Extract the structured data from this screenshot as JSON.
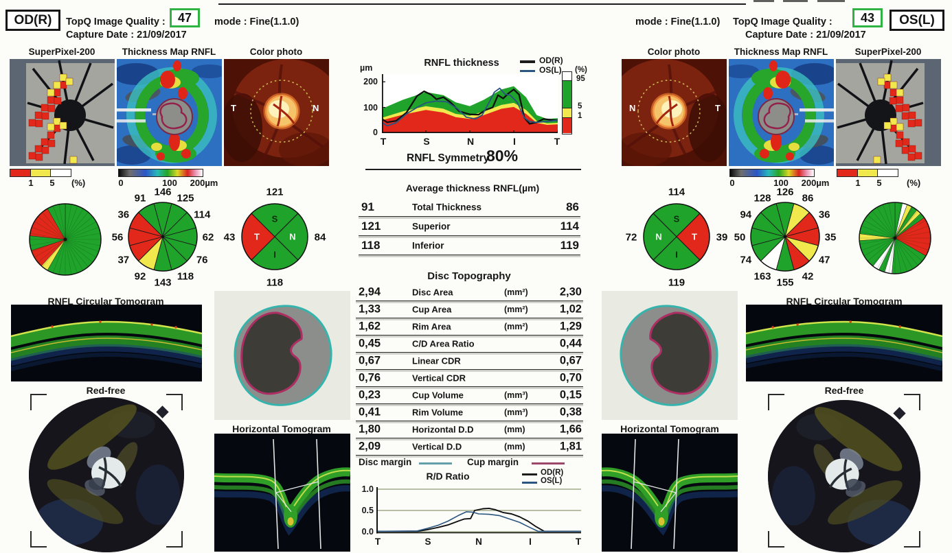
{
  "header": {
    "od": {
      "eye": "OD(R)",
      "quality_label": "TopQ Image Quality :",
      "quality_value": "47",
      "mode": "mode : Fine(1.1.0)",
      "capture_date": "Capture Date : 21/09/2017"
    },
    "os": {
      "eye": "OS(L)",
      "quality_label": "TopQ Image Quality :",
      "quality_value": "43",
      "mode": "mode : Fine(1.1.0)",
      "capture_date": "Capture Date : 21/09/2017"
    },
    "quality_box_color": "#2fb343"
  },
  "row1": {
    "od": {
      "superpixel": "SuperPixel-200",
      "thickness": "Thickness Map RNFL",
      "photo": "Color photo",
      "photo_left": "T",
      "photo_right": "N"
    },
    "os": {
      "photo": "Color photo",
      "thickness": "Thickness Map RNFL",
      "superpixel": "SuperPixel-200",
      "photo_left": "N",
      "photo_right": "T"
    }
  },
  "scales": {
    "percent": {
      "t1": "1",
      "t2": "5",
      "unit": "(%)"
    },
    "micron": {
      "t0": "0",
      "t100": "100",
      "t200": "200µm"
    }
  },
  "rnfl": {
    "title": "RNFL thickness",
    "legend_od": "OD(R)",
    "legend_os": "OS(L)",
    "unit": "µm",
    "yticks": [
      "200",
      "100",
      "0"
    ],
    "xticks": [
      "T",
      "S",
      "N",
      "I",
      "T"
    ],
    "colorbar": {
      "unit": "(%)",
      "t95": "95",
      "t5": "5",
      "t1": "1"
    },
    "symmetry_label": "RNFL Symmetry",
    "symmetry_value": "80%"
  },
  "avg_table": {
    "title": "Average thickness RNFL(µm)",
    "rows": [
      {
        "od": "91",
        "label": "Total Thickness",
        "os": "86"
      },
      {
        "od": "121",
        "label": "Superior",
        "os": "114"
      },
      {
        "od": "118",
        "label": "Inferior",
        "os": "119"
      }
    ]
  },
  "disc_table": {
    "title": "Disc Topography",
    "rows": [
      {
        "od": "2,94",
        "label": "Disc Area",
        "unit": "(mm²)",
        "os": "2,30"
      },
      {
        "od": "1,33",
        "label": "Cup Area",
        "unit": "(mm²)",
        "os": "1,02"
      },
      {
        "od": "1,62",
        "label": "Rim Area",
        "unit": "(mm²)",
        "os": "1,29"
      },
      {
        "od": "0,45",
        "label": "C/D Area Ratio",
        "unit": "",
        "os": "0,44"
      },
      {
        "od": "0,67",
        "label": "Linear CDR",
        "unit": "",
        "os": "0,67"
      },
      {
        "od": "0,76",
        "label": "Vertical CDR",
        "unit": "",
        "os": "0,70"
      },
      {
        "od": "0,23",
        "label": "Cup Volume",
        "unit": "(mm³)",
        "os": "0,15"
      },
      {
        "od": "0,41",
        "label": "Rim Volume",
        "unit": "(mm³)",
        "os": "0,38"
      },
      {
        "od": "1,80",
        "label": "Horizontal D.D",
        "unit": "(mm)",
        "os": "1,66"
      },
      {
        "od": "2,09",
        "label": "Vertical D.D",
        "unit": "(mm)",
        "os": "1,81"
      }
    ]
  },
  "margins": {
    "disc_label": "Disc margin",
    "cup_label": "Cup margin",
    "disc_color": "#639fa8",
    "cup_color": "#9c4668"
  },
  "rd": {
    "title": "R/D Ratio",
    "legend_od": "OD(R)",
    "legend_os": "OS(L)",
    "yticks": [
      "1.0",
      "0.5",
      "0.0"
    ],
    "xticks": [
      "T",
      "S",
      "N",
      "I",
      "T"
    ]
  },
  "sections": {
    "circular_tomogram": "RNFL Circular Tomogram",
    "red_free": "Red-free",
    "horizontal_tomogram": "Horizontal Tomogram"
  },
  "status_colors": {
    "G": "#1fa32b",
    "R": "#e1281a",
    "Y": "#f1e84e",
    "W": "#ffffff"
  },
  "series_colors": {
    "od": "#101010",
    "os": "#2a5580"
  },
  "pies": {
    "od_superpixel": {
      "sectors": [
        [
          0,
          210,
          "G"
        ],
        [
          210,
          222,
          "Y"
        ],
        [
          222,
          252,
          "R"
        ],
        [
          252,
          276,
          "G"
        ],
        [
          276,
          330,
          "R"
        ],
        [
          330,
          360,
          "G"
        ]
      ]
    },
    "os_superpixel": {
      "sectors": [
        [
          0,
          12,
          "G"
        ],
        [
          12,
          20,
          "W"
        ],
        [
          20,
          28,
          "Y"
        ],
        [
          28,
          38,
          "G"
        ],
        [
          38,
          46,
          "Y"
        ],
        [
          46,
          55,
          "G"
        ],
        [
          55,
          120,
          "R"
        ],
        [
          120,
          185,
          "G"
        ],
        [
          185,
          197,
          "W"
        ],
        [
          197,
          207,
          "G"
        ],
        [
          207,
          218,
          "W"
        ],
        [
          218,
          266,
          "G"
        ],
        [
          266,
          277,
          "Y"
        ],
        [
          277,
          360,
          "G"
        ]
      ]
    }
  },
  "chart_data": [
    {
      "type": "area",
      "id": "rnfl_thickness_profile",
      "title": "RNFL thickness",
      "ylabel": "µm",
      "ylim": [
        0,
        230
      ],
      "yticks": [
        0,
        100,
        200
      ],
      "xticks": [
        "T",
        "S",
        "N",
        "I",
        "T"
      ],
      "legend": [
        {
          "name": "OD(R)",
          "color": "#101010"
        },
        {
          "name": "OS(L)",
          "color": "#2a5580"
        }
      ],
      "symmetry": "80%",
      "bands": {
        "x": [
          0,
          12,
          25,
          35,
          42,
          50,
          58,
          68,
          75,
          82,
          88,
          94,
          100
        ],
        "p95": [
          95,
          130,
          160,
          148,
          120,
          105,
          130,
          170,
          183,
          140,
          70,
          55,
          58
        ],
        "p5": [
          60,
          85,
          105,
          95,
          75,
          68,
          85,
          110,
          118,
          90,
          48,
          38,
          40
        ],
        "p1": [
          50,
          72,
          90,
          80,
          62,
          55,
          70,
          95,
          102,
          75,
          40,
          32,
          34
        ]
      },
      "series": [
        {
          "name": "OD(R)",
          "color": "#101010",
          "x": [
            0,
            3,
            8,
            14,
            20,
            24,
            28,
            31,
            35,
            39,
            44,
            50,
            55,
            59,
            63,
            66,
            69,
            72,
            75,
            78,
            81,
            84,
            88,
            92,
            96,
            100
          ],
          "y": [
            55,
            42,
            48,
            80,
            145,
            163,
            150,
            132,
            140,
            120,
            85,
            73,
            72,
            90,
            100,
            148,
            135,
            155,
            170,
            150,
            60,
            36,
            42,
            55,
            52,
            50
          ]
        },
        {
          "name": "OS(L)",
          "color": "#2a5580",
          "x": [
            0,
            3,
            8,
            14,
            20,
            25,
            31,
            37,
            43,
            48,
            53,
            57,
            61,
            64,
            67,
            70,
            73,
            77,
            81,
            84,
            88,
            93,
            100
          ],
          "y": [
            42,
            28,
            40,
            75,
            100,
            118,
            125,
            122,
            95,
            62,
            55,
            70,
            120,
            160,
            175,
            152,
            148,
            120,
            60,
            45,
            42,
            45,
            50
          ]
        }
      ]
    },
    {
      "type": "line",
      "id": "rd_ratio",
      "title": "R/D Ratio",
      "ylim": [
        0,
        1
      ],
      "yticks": [
        0.0,
        0.5,
        1.0
      ],
      "xticks": [
        "T",
        "S",
        "N",
        "I",
        "T"
      ],
      "series": [
        {
          "name": "OD(R)",
          "color": "#101010",
          "x": [
            0,
            20,
            25,
            30,
            35,
            40,
            43,
            46,
            48,
            52,
            55,
            58,
            62,
            66,
            70,
            74,
            78,
            82,
            100
          ],
          "y": [
            0.01,
            0.01,
            0.05,
            0.1,
            0.16,
            0.25,
            0.3,
            0.31,
            0.5,
            0.54,
            0.55,
            0.52,
            0.45,
            0.42,
            0.35,
            0.25,
            0.12,
            0.01,
            0.01
          ]
        },
        {
          "name": "OS(L)",
          "color": "#2a5580",
          "x": [
            0,
            20,
            25,
            30,
            35,
            40,
            44,
            47,
            50,
            55,
            60,
            65,
            70,
            75,
            79,
            100
          ],
          "y": [
            0.01,
            0.02,
            0.08,
            0.15,
            0.25,
            0.38,
            0.47,
            0.46,
            0.42,
            0.41,
            0.38,
            0.3,
            0.22,
            0.1,
            0.01,
            0.01
          ]
        }
      ]
    },
    {
      "type": "pie",
      "id": "od_clock_hour_rnfl",
      "unit": "µm",
      "clockwise_from_12": [
        146,
        125,
        114,
        62,
        76,
        118,
        143,
        92,
        37,
        56,
        36,
        91
      ],
      "colors": [
        "G",
        "G",
        "G",
        "G",
        "G",
        "G",
        "G",
        "Y",
        "R",
        "R",
        "R",
        "G"
      ]
    },
    {
      "type": "pie",
      "id": "os_clock_hour_rnfl",
      "unit": "µm",
      "clockwise_from_12": [
        126,
        86,
        36,
        35,
        47,
        42,
        155,
        163,
        74,
        50,
        94,
        128
      ],
      "colors": [
        "G",
        "Y",
        "R",
        "R",
        "Y",
        "R",
        "G",
        "W",
        "G",
        "G",
        "G",
        "G"
      ]
    },
    {
      "type": "pie",
      "id": "od_quadrant_rnfl",
      "unit": "µm",
      "segments": [
        {
          "letter": "S",
          "value": 121,
          "color": "G",
          "pos": "top"
        },
        {
          "letter": "N",
          "value": 84,
          "color": "G",
          "pos": "right"
        },
        {
          "letter": "I",
          "value": 118,
          "color": "G",
          "pos": "bottom"
        },
        {
          "letter": "T",
          "value": 43,
          "color": "R",
          "pos": "left"
        }
      ]
    },
    {
      "type": "pie",
      "id": "os_quadrant_rnfl",
      "unit": "µm",
      "segments": [
        {
          "letter": "S",
          "value": 114,
          "color": "G",
          "pos": "top"
        },
        {
          "letter": "T",
          "value": 39,
          "color": "R",
          "pos": "right"
        },
        {
          "letter": "I",
          "value": 119,
          "color": "G",
          "pos": "bottom"
        },
        {
          "letter": "N",
          "value": 72,
          "color": "G",
          "pos": "left"
        }
      ]
    }
  ]
}
